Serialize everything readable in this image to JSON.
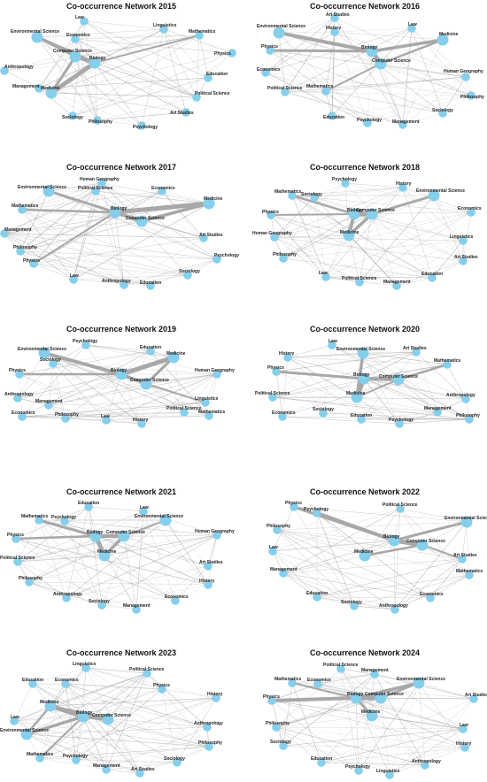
{
  "node_color": "#87ceeb",
  "edge_color": "#999999",
  "networks": [
    {
      "title": "Co-occurrence Network 2015",
      "nodes": [
        "Law",
        "Economics",
        "Environmental Science",
        "Linguistics",
        "Mathematics",
        "Computer Science",
        "Biology",
        "Physics",
        "Anthropology",
        "Management",
        "Medicine",
        "Education",
        "Political Science",
        "Sociology",
        "Philosophy",
        "Art Studies",
        "Psychology"
      ],
      "strong": [
        [
          "Biology",
          "Medicine"
        ],
        [
          "Biology",
          "Computer Science"
        ],
        [
          "Environmental Science",
          "Biology"
        ],
        [
          "Computer Science",
          "Medicine"
        ],
        [
          "Environmental Science",
          "Computer Science"
        ],
        [
          "Biology",
          "Mathematics"
        ]
      ]
    },
    {
      "title": "Co-occurrence Network 2016",
      "nodes": [
        "Art Studies",
        "History",
        "Environmental Science",
        "Law",
        "Medicine",
        "Physics",
        "Biology",
        "Computer Science",
        "Economics",
        "Human Geography",
        "Political Science",
        "Mathematics",
        "Philosophy",
        "Sociology",
        "Education",
        "Psychology",
        "Management"
      ],
      "strong": [
        [
          "Biology",
          "Computer Science"
        ],
        [
          "Environmental Science",
          "Biology"
        ],
        [
          "Biology",
          "Medicine"
        ],
        [
          "Physics",
          "Biology"
        ],
        [
          "Computer Science",
          "Medicine"
        ],
        [
          "Mathematics",
          "Computer Science"
        ]
      ]
    },
    {
      "title": "Co-occurrence Network 2017",
      "nodes": [
        "Human Geography",
        "Environmental Science",
        "Political Science",
        "Economics",
        "Medicine",
        "Mathematics",
        "Biology",
        "Computer Science",
        "Management",
        "Art Studies",
        "Philosophy",
        "Psychology",
        "Physics",
        "Sociology",
        "Law",
        "Anthropology",
        "Education"
      ],
      "strong": [
        [
          "Biology",
          "Medicine"
        ],
        [
          "Biology",
          "Computer Science"
        ],
        [
          "Computer Science",
          "Medicine"
        ],
        [
          "Environmental Science",
          "Biology"
        ],
        [
          "Mathematics",
          "Biology"
        ],
        [
          "Physics",
          "Biology"
        ]
      ]
    },
    {
      "title": "Co-occurrence Network 2018",
      "nodes": [
        "Psychology",
        "History",
        "Mathematics",
        "Sociology",
        "Environmental Science",
        "Physics",
        "Biology",
        "Computer Science",
        "Economics",
        "Human Geography",
        "Medicine",
        "Linguistics",
        "Art Studies",
        "Philosophy",
        "Law",
        "Political Science",
        "Management",
        "Education"
      ],
      "strong": [
        [
          "Biology",
          "Computer Science"
        ],
        [
          "Biology",
          "Medicine"
        ],
        [
          "Computer Science",
          "Medicine"
        ],
        [
          "Computer Science",
          "Environmental Science"
        ],
        [
          "Mathematics",
          "Biology"
        ],
        [
          "Physics",
          "Biology"
        ]
      ]
    },
    {
      "title": "Co-occurrence Network 2019",
      "nodes": [
        "Psychology",
        "Environmental Science",
        "Education",
        "Sociology",
        "Medicine",
        "Physics",
        "Biology",
        "Human Geography",
        "Computer Science",
        "Anthropology",
        "Linguistics",
        "Economics",
        "Mathematics",
        "Management",
        "Political Science",
        "Philosophy",
        "Law",
        "History"
      ],
      "strong": [
        [
          "Biology",
          "Medicine"
        ],
        [
          "Environmental Science",
          "Biology"
        ],
        [
          "Biology",
          "Computer Science"
        ],
        [
          "Computer Science",
          "Medicine"
        ],
        [
          "Physics",
          "Biology"
        ],
        [
          "Computer Science",
          "Linguistics"
        ]
      ]
    },
    {
      "title": "Co-occurrence Network 2020",
      "nodes": [
        "Law",
        "History",
        "Environmental Science",
        "Art Studies",
        "Mathematics",
        "Physics",
        "Biology",
        "Computer Science",
        "Political Science",
        "Medicine",
        "Anthropology",
        "Economics",
        "Philosophy",
        "Management",
        "Sociology",
        "Education",
        "Psychology"
      ],
      "strong": [
        [
          "Biology",
          "Medicine"
        ],
        [
          "Biology",
          "Computer Science"
        ],
        [
          "Environmental Science",
          "Medicine"
        ],
        [
          "Physics",
          "Biology"
        ],
        [
          "Computer Science",
          "Mathematics"
        ],
        [
          "Computer Science",
          "Medicine"
        ]
      ]
    },
    {
      "title": "Co-occurrence Network 2021",
      "nodes": [
        "Education",
        "Law",
        "Mathematics",
        "Psychology",
        "Environmental Science",
        "Physics",
        "Biology",
        "Computer Science",
        "Human Geography",
        "Medicine",
        "Political Science",
        "Art Studies",
        "Philosophy",
        "History",
        "Anthropology",
        "Economics",
        "Sociology",
        "Management"
      ],
      "strong": [
        [
          "Biology",
          "Medicine"
        ],
        [
          "Biology",
          "Computer Science"
        ],
        [
          "Computer Science",
          "Medicine"
        ],
        [
          "Mathematics",
          "Biology"
        ],
        [
          "Physics",
          "Biology"
        ],
        [
          "Computer Science",
          "Environmental Science"
        ]
      ]
    },
    {
      "title": "Co-occurrence Network 2022",
      "nodes": [
        "Physics",
        "Political Science",
        "Psychology",
        "Environmental Science",
        "Philosophy",
        "Biology",
        "Law",
        "Computer Science",
        "Medicine",
        "Art Studies",
        "Management",
        "Mathematics",
        "Education",
        "Economics",
        "Sociology",
        "Anthropology"
      ],
      "strong": [
        [
          "Biology",
          "Computer Science"
        ],
        [
          "Psychology",
          "Biology"
        ],
        [
          "Physics",
          "Biology"
        ],
        [
          "Biology",
          "Environmental Science"
        ],
        [
          "Computer Science",
          "Medicine"
        ],
        [
          "Computer Science",
          "Art Studies"
        ]
      ]
    },
    {
      "title": "Co-occurrence Network 2023",
      "nodes": [
        "Linguistics",
        "Political Science",
        "Education",
        "Economics",
        "Physics",
        "History",
        "Medicine",
        "Biology",
        "Computer Science",
        "Law",
        "Anthropology",
        "Environmental Science",
        "Philosophy",
        "Mathematics",
        "Psychology",
        "Sociology",
        "Management",
        "Art Studies"
      ],
      "strong": [
        [
          "Medicine",
          "Biology"
        ],
        [
          "Biology",
          "Computer Science"
        ],
        [
          "Environmental Science",
          "Biology"
        ],
        [
          "Medicine",
          "Computer Science"
        ],
        [
          "Environmental Science",
          "Medicine"
        ],
        [
          "Mathematics",
          "Biology"
        ]
      ]
    },
    {
      "title": "Co-occurrence Network 2024",
      "nodes": [
        "Political Science",
        "Management",
        "Mathematics",
        "Economics",
        "Environmental Science",
        "Biology",
        "Computer Science",
        "Physics",
        "Art Studies",
        "Medicine",
        "Law",
        "Philosophy",
        "History",
        "Sociology",
        "Education",
        "Anthropology",
        "Psychology",
        "Linguistics"
      ],
      "strong": [
        [
          "Biology",
          "Computer Science"
        ],
        [
          "Physics",
          "Biology"
        ],
        [
          "Biology",
          "Environmental Science"
        ],
        [
          "Biology",
          "Medicine"
        ],
        [
          "Computer Science",
          "Environmental Science"
        ],
        [
          "Mathematics",
          "Biology"
        ]
      ]
    }
  ]
}
